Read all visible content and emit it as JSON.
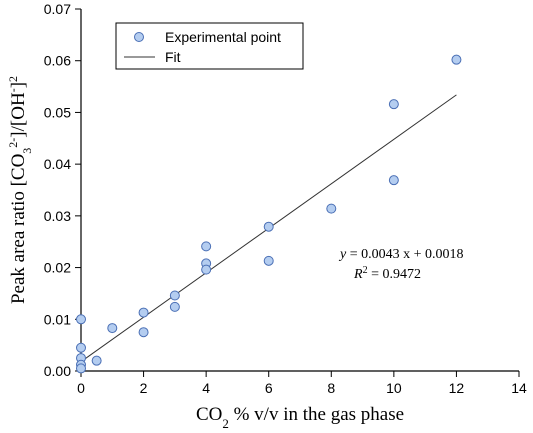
{
  "chart_data": {
    "type": "scatter",
    "xlabel": {
      "prefix": "CO",
      "sub": "2",
      "suffix": " % v/v in the gas phase"
    },
    "ylabel": {
      "prefix": "Peak area ratio [CO",
      "sub": "3",
      "sup": "2-",
      "middle": "]/[OH",
      "sup2": "-",
      "end": "]",
      "sup3": "2"
    },
    "xlim": [
      0,
      14
    ],
    "ylim": [
      0,
      0.07
    ],
    "x_ticks": [
      "0",
      "2",
      "4",
      "6",
      "8",
      "10",
      "12",
      "14"
    ],
    "y_ticks": [
      "0.00",
      "0.01",
      "0.02",
      "0.03",
      "0.04",
      "0.05",
      "0.06",
      "0.07"
    ],
    "grid": false,
    "legend": {
      "position": "top-left",
      "entries": [
        "Experimental point",
        "Fit"
      ]
    },
    "series": [
      {
        "name": "Experimental point",
        "type": "scatter",
        "marker_color": "#b4cdf0",
        "edge_color": "#4a6fb5",
        "points": [
          [
            0,
            0.01
          ],
          [
            0,
            0.0045
          ],
          [
            0,
            0.0025
          ],
          [
            0,
            0.0012
          ],
          [
            0,
            0.0005
          ],
          [
            0.5,
            0.002
          ],
          [
            1,
            0.0083
          ],
          [
            2,
            0.0113
          ],
          [
            2,
            0.0075
          ],
          [
            3,
            0.0146
          ],
          [
            3,
            0.0124
          ],
          [
            4,
            0.0241
          ],
          [
            4,
            0.0208
          ],
          [
            4,
            0.0196
          ],
          [
            6,
            0.0279
          ],
          [
            6,
            0.0213
          ],
          [
            8,
            0.0314
          ],
          [
            10,
            0.0516
          ],
          [
            10,
            0.0369
          ],
          [
            12,
            0.0602
          ]
        ]
      },
      {
        "name": "Fit",
        "type": "line",
        "color": "#333333",
        "slope": 0.0043,
        "intercept": 0.0018,
        "x_range": [
          0,
          12
        ]
      }
    ],
    "annotation": {
      "equation": {
        "lhs": "y",
        "rhs_prefix": " = 0.0043 x + 0.0018"
      },
      "r2": {
        "lhs": "R",
        "sup": "2",
        "rhs": " = 0.9472"
      }
    }
  }
}
